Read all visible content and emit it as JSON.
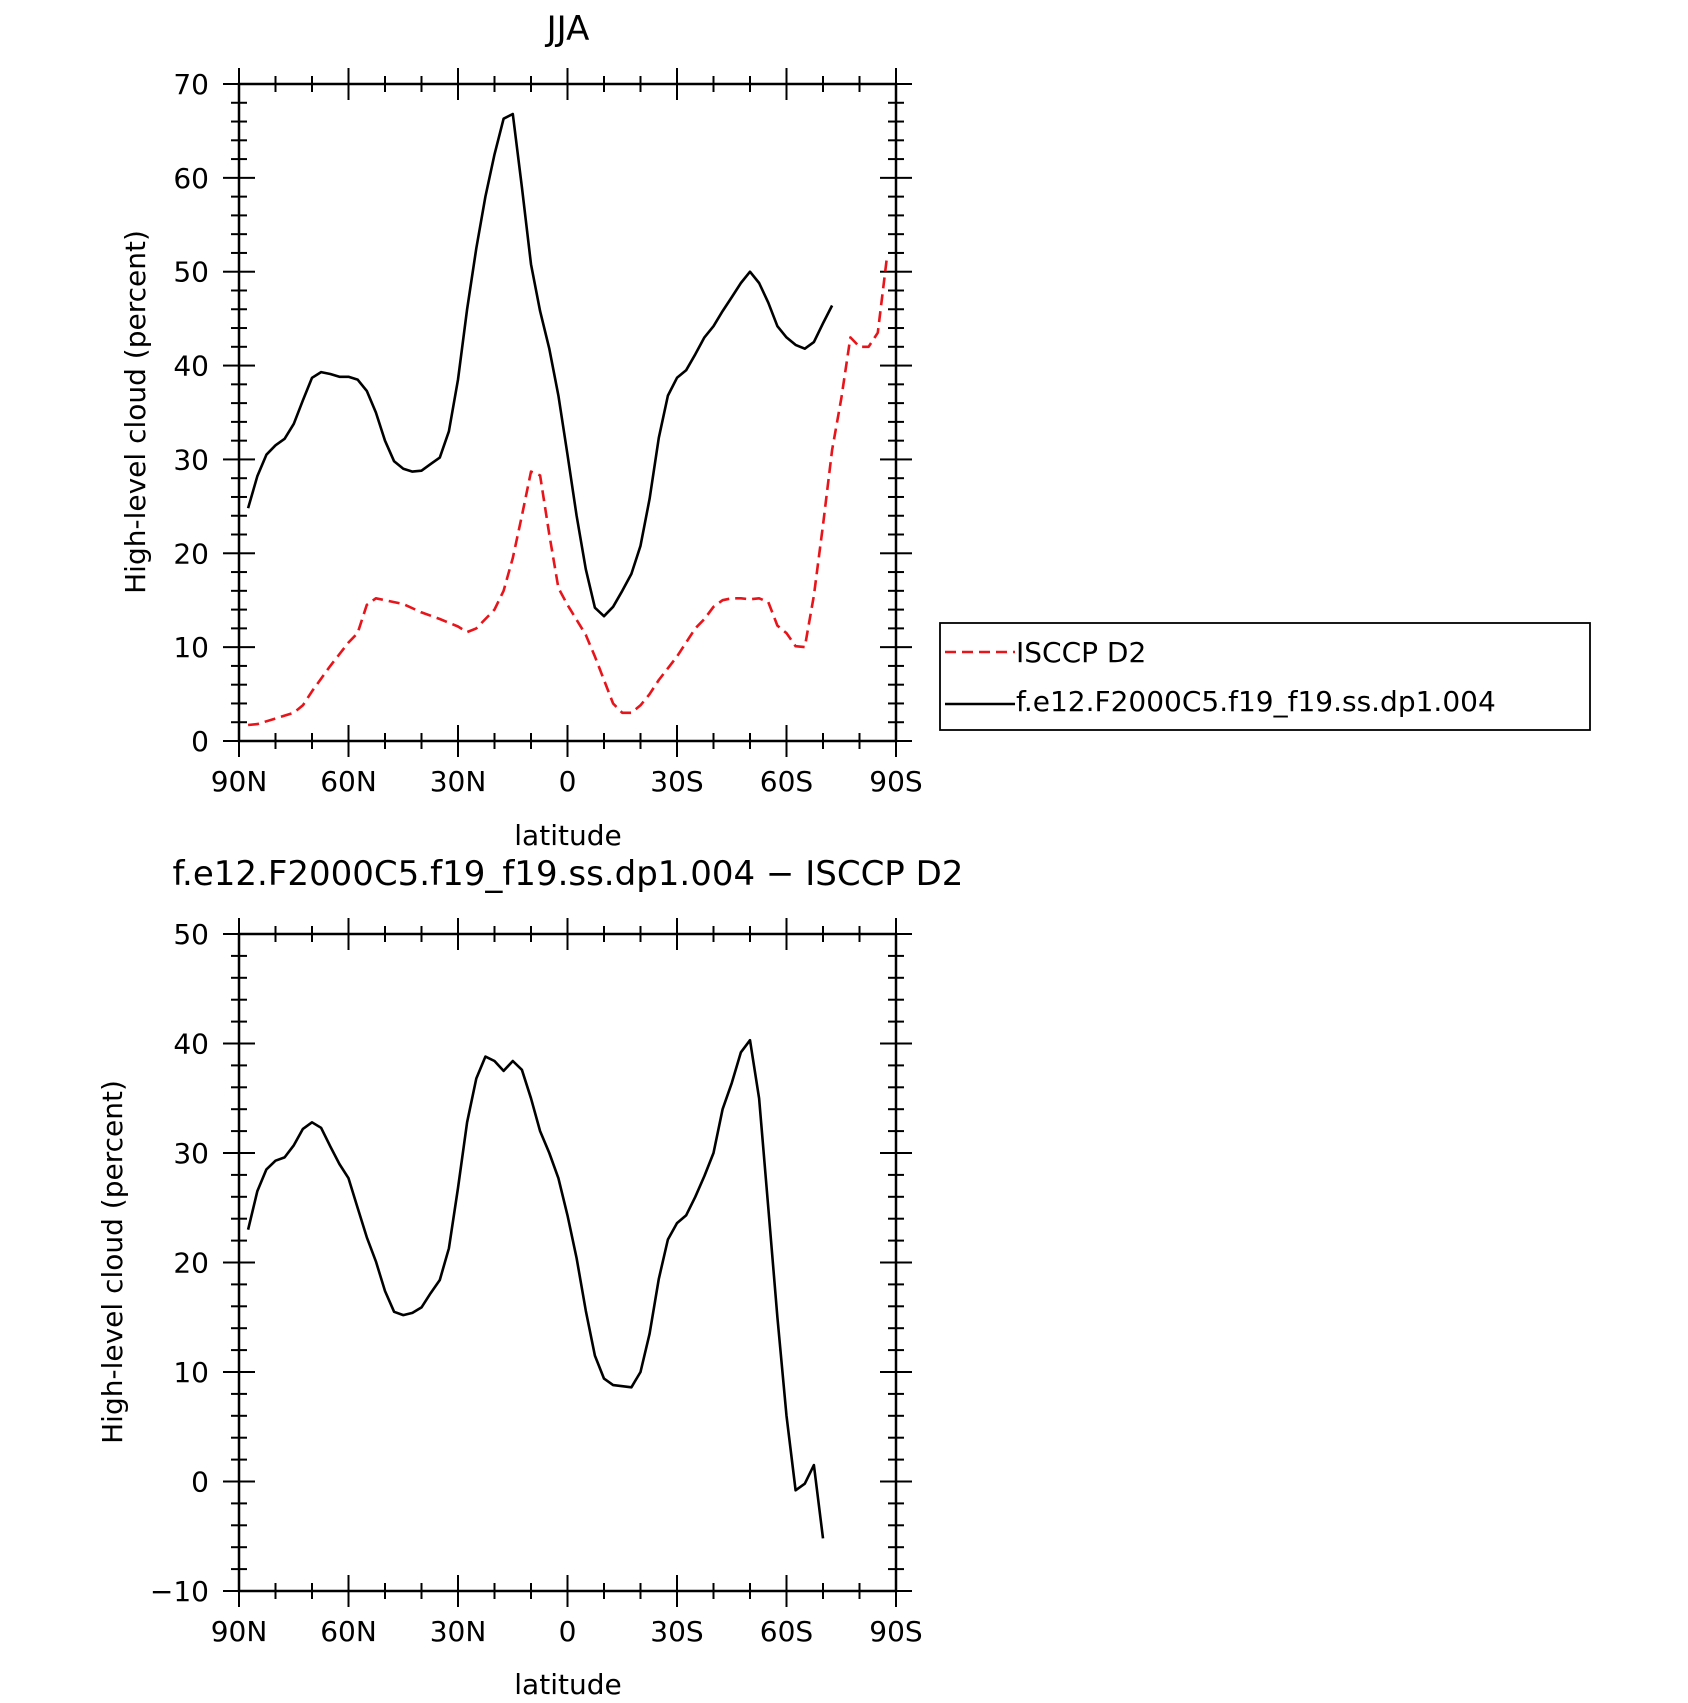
{
  "chart_data": [
    {
      "type": "line",
      "title": "JJA",
      "xlabel": "latitude",
      "ylabel": "High-level cloud (percent)",
      "xlim": [
        90,
        -90
      ],
      "ylim": [
        0,
        70
      ],
      "x_ticks": [
        90,
        60,
        30,
        0,
        -30,
        -60,
        -90
      ],
      "x_tick_labels": [
        "90N",
        "60N",
        "30N",
        "0",
        "30S",
        "60S",
        "90S"
      ],
      "y_ticks": [
        0,
        10,
        20,
        30,
        40,
        50,
        60,
        70
      ],
      "y_tick_labels": [
        "0",
        "10",
        "20",
        "30",
        "40",
        "50",
        "60",
        "70"
      ],
      "grid": false,
      "legend": "right",
      "series": [
        {
          "name": "ISCCP D2",
          "color": "#e8141a",
          "dash": true,
          "points": [
            [
              87.5,
              1.7
            ],
            [
              85,
              1.8
            ],
            [
              80,
              2.4
            ],
            [
              75,
              3.0
            ],
            [
              72.5,
              3.8
            ],
            [
              70,
              5.3
            ],
            [
              65,
              8.0
            ],
            [
              60,
              10.5
            ],
            [
              57.5,
              11.5
            ],
            [
              55,
              14.5
            ],
            [
              52.5,
              15.2
            ],
            [
              50,
              15.0
            ],
            [
              45,
              14.6
            ],
            [
              40,
              13.7
            ],
            [
              35,
              13.0
            ],
            [
              30,
              12.2
            ],
            [
              27.5,
              11.6
            ],
            [
              25,
              12.0
            ],
            [
              20,
              14.0
            ],
            [
              17.5,
              16.0
            ],
            [
              15,
              19.5
            ],
            [
              12.5,
              24.0
            ],
            [
              10,
              28.7
            ],
            [
              7.5,
              28.3
            ],
            [
              5,
              22.0
            ],
            [
              2.5,
              16.3
            ],
            [
              0,
              14.5
            ],
            [
              -5,
              11.3
            ],
            [
              -7.5,
              9.0
            ],
            [
              -10,
              6.5
            ],
            [
              -12.5,
              4.0
            ],
            [
              -15,
              3.0
            ],
            [
              -17.5,
              3.0
            ],
            [
              -20,
              3.8
            ],
            [
              -22.5,
              5.0
            ],
            [
              -25,
              6.5
            ],
            [
              -30,
              9.0
            ],
            [
              -32.5,
              10.5
            ],
            [
              -35,
              12.0
            ],
            [
              -37.5,
              13.0
            ],
            [
              -40,
              14.3
            ],
            [
              -42.5,
              15.0
            ],
            [
              -45,
              15.2
            ],
            [
              -47.5,
              15.2
            ],
            [
              -50,
              15.1
            ],
            [
              -52.5,
              15.2
            ],
            [
              -55,
              14.8
            ],
            [
              -57.5,
              12.3
            ],
            [
              -60,
              11.5
            ],
            [
              -62.5,
              10.1
            ],
            [
              -65,
              10.0
            ],
            [
              -67.5,
              15.5
            ],
            [
              -70,
              23.0
            ],
            [
              -72.5,
              31.0
            ],
            [
              -75,
              36.5
            ],
            [
              -77.5,
              43.0
            ],
            [
              -80,
              42.0
            ],
            [
              -82.5,
              42.0
            ],
            [
              -85,
              43.5
            ],
            [
              -87.5,
              51.5
            ]
          ]
        },
        {
          "name": "f.e12.F2000C5.f19_f19.ss.dp1.004",
          "color": "#000000",
          "dash": false,
          "points": [
            [
              87.5,
              24.8
            ],
            [
              85,
              28.2
            ],
            [
              82.5,
              30.5
            ],
            [
              80,
              31.5
            ],
            [
              77.5,
              32.2
            ],
            [
              75,
              33.8
            ],
            [
              72.5,
              36.3
            ],
            [
              70,
              38.7
            ],
            [
              67.5,
              39.3
            ],
            [
              65,
              39.1
            ],
            [
              62.5,
              38.8
            ],
            [
              60,
              38.8
            ],
            [
              57.5,
              38.5
            ],
            [
              55,
              37.3
            ],
            [
              52.5,
              35.0
            ],
            [
              50,
              32.0
            ],
            [
              47.5,
              29.8
            ],
            [
              45,
              29.0
            ],
            [
              42.5,
              28.7
            ],
            [
              40,
              28.8
            ],
            [
              37.5,
              29.5
            ],
            [
              35,
              30.2
            ],
            [
              32.5,
              33.0
            ],
            [
              30,
              38.5
            ],
            [
              27.5,
              46.0
            ],
            [
              25,
              52.5
            ],
            [
              22.5,
              58.0
            ],
            [
              20,
              62.5
            ],
            [
              17.5,
              66.3
            ],
            [
              15,
              66.8
            ],
            [
              12.5,
              59.0
            ],
            [
              10,
              50.8
            ],
            [
              7.5,
              45.8
            ],
            [
              5,
              41.8
            ],
            [
              2.5,
              36.8
            ],
            [
              0,
              30.5
            ],
            [
              -2.5,
              24.0
            ],
            [
              -5,
              18.3
            ],
            [
              -7.5,
              14.2
            ],
            [
              -10,
              13.3
            ],
            [
              -12.5,
              14.3
            ],
            [
              -15,
              16.0
            ],
            [
              -17.5,
              17.8
            ],
            [
              -20,
              20.8
            ],
            [
              -22.5,
              25.8
            ],
            [
              -25,
              32.3
            ],
            [
              -27.5,
              36.8
            ],
            [
              -30,
              38.7
            ],
            [
              -32.5,
              39.5
            ],
            [
              -35,
              41.2
            ],
            [
              -37.5,
              43.0
            ],
            [
              -40,
              44.2
            ],
            [
              -42.5,
              45.8
            ],
            [
              -45,
              47.3
            ],
            [
              -47.5,
              48.8
            ],
            [
              -50,
              50.0
            ],
            [
              -52.5,
              48.8
            ],
            [
              -55,
              46.7
            ],
            [
              -57.5,
              44.2
            ],
            [
              -60,
              43.0
            ],
            [
              -62.5,
              42.2
            ],
            [
              -65,
              41.8
            ],
            [
              -67.5,
              42.5
            ],
            [
              -70,
              44.5
            ],
            [
              -72.5,
              46.4
            ]
          ]
        }
      ]
    },
    {
      "type": "line",
      "title": "f.e12.F2000C5.f19_f19.ss.dp1.004 − ISCCP D2",
      "xlabel": "latitude",
      "ylabel": "High-level cloud (percent)",
      "xlim": [
        90,
        -90
      ],
      "ylim": [
        -10,
        50
      ],
      "x_ticks": [
        90,
        60,
        30,
        0,
        -30,
        -60,
        -90
      ],
      "x_tick_labels": [
        "90N",
        "60N",
        "30N",
        "0",
        "30S",
        "60S",
        "90S"
      ],
      "y_ticks": [
        -10,
        0,
        10,
        20,
        30,
        40,
        50
      ],
      "y_tick_labels": [
        "−10",
        "0",
        "10",
        "20",
        "30",
        "40",
        "50"
      ],
      "grid": false,
      "series": [
        {
          "color": "#000000",
          "dash": false,
          "points": [
            [
              87.5,
              23.0
            ],
            [
              85,
              26.5
            ],
            [
              82.5,
              28.5
            ],
            [
              80,
              29.3
            ],
            [
              77.5,
              29.6
            ],
            [
              75,
              30.7
            ],
            [
              72.5,
              32.2
            ],
            [
              70,
              32.8
            ],
            [
              67.5,
              32.3
            ],
            [
              65,
              30.6
            ],
            [
              62.5,
              29.0
            ],
            [
              60,
              27.7
            ],
            [
              57.5,
              25.0
            ],
            [
              55,
              22.3
            ],
            [
              52.5,
              20.1
            ],
            [
              50,
              17.4
            ],
            [
              47.5,
              15.5
            ],
            [
              45,
              15.2
            ],
            [
              42.5,
              15.4
            ],
            [
              40,
              15.9
            ],
            [
              37.5,
              17.2
            ],
            [
              35,
              18.4
            ],
            [
              32.5,
              21.3
            ],
            [
              30,
              26.8
            ],
            [
              27.5,
              32.8
            ],
            [
              25,
              36.8
            ],
            [
              22.5,
              38.8
            ],
            [
              20,
              38.4
            ],
            [
              17.5,
              37.5
            ],
            [
              15,
              38.4
            ],
            [
              12.5,
              37.6
            ],
            [
              10,
              35.0
            ],
            [
              7.5,
              32.0
            ],
            [
              5,
              30.0
            ],
            [
              2.5,
              27.7
            ],
            [
              0,
              24.3
            ],
            [
              -2.5,
              20.4
            ],
            [
              -5,
              15.6
            ],
            [
              -7.5,
              11.5
            ],
            [
              -10,
              9.4
            ],
            [
              -12.5,
              8.8
            ],
            [
              -15,
              8.7
            ],
            [
              -17.5,
              8.6
            ],
            [
              -20,
              10.0
            ],
            [
              -22.5,
              13.5
            ],
            [
              -25,
              18.5
            ],
            [
              -27.5,
              22.1
            ],
            [
              -30,
              23.6
            ],
            [
              -32.5,
              24.3
            ],
            [
              -35,
              26.0
            ],
            [
              -37.5,
              27.9
            ],
            [
              -40,
              30.0
            ],
            [
              -42.5,
              34.0
            ],
            [
              -45,
              36.4
            ],
            [
              -47.5,
              39.2
            ],
            [
              -50,
              40.3
            ],
            [
              -52.5,
              35.0
            ],
            [
              -55,
              25.0
            ],
            [
              -57.5,
              15.0
            ],
            [
              -60,
              6.0
            ],
            [
              -62.5,
              -0.8
            ],
            [
              -65,
              -0.2
            ],
            [
              -67.5,
              1.5
            ],
            [
              -70,
              -5.2
            ]
          ]
        }
      ]
    }
  ]
}
